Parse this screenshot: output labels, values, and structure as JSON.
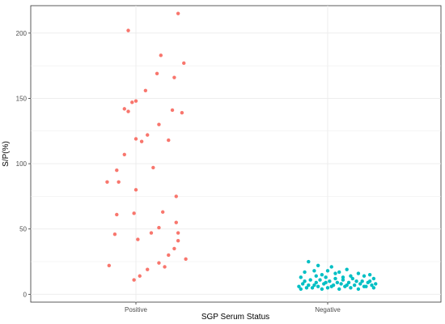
{
  "chart_data": {
    "type": "scatter",
    "xlabel": "SGP Serum Status",
    "ylabel": "S/P(%)",
    "categories": [
      "Positive",
      "Negative"
    ],
    "ylim": [
      -6,
      221
    ],
    "yticks": [
      0,
      50,
      100,
      150,
      200
    ],
    "grid": true,
    "legend": "none",
    "jitter": true,
    "colors": {
      "Positive": "#f8766d",
      "Negative": "#00bfc4"
    },
    "series": [
      {
        "category": "Positive",
        "points": [
          {
            "x": 1.22,
            "y": 215
          },
          {
            "x": 0.96,
            "y": 202
          },
          {
            "x": 1.13,
            "y": 183
          },
          {
            "x": 1.25,
            "y": 177
          },
          {
            "x": 1.11,
            "y": 169
          },
          {
            "x": 1.2,
            "y": 166
          },
          {
            "x": 1.05,
            "y": 156
          },
          {
            "x": 1.0,
            "y": 148
          },
          {
            "x": 0.98,
            "y": 147
          },
          {
            "x": 0.94,
            "y": 142
          },
          {
            "x": 0.96,
            "y": 140
          },
          {
            "x": 1.19,
            "y": 141
          },
          {
            "x": 1.24,
            "y": 139
          },
          {
            "x": 1.12,
            "y": 130
          },
          {
            "x": 1.06,
            "y": 122
          },
          {
            "x": 1.0,
            "y": 119
          },
          {
            "x": 1.03,
            "y": 117
          },
          {
            "x": 1.17,
            "y": 118
          },
          {
            "x": 0.94,
            "y": 107
          },
          {
            "x": 1.09,
            "y": 97
          },
          {
            "x": 0.9,
            "y": 95
          },
          {
            "x": 0.85,
            "y": 86
          },
          {
            "x": 0.91,
            "y": 86
          },
          {
            "x": 1.0,
            "y": 80
          },
          {
            "x": 1.21,
            "y": 75
          },
          {
            "x": 1.14,
            "y": 63
          },
          {
            "x": 0.9,
            "y": 61
          },
          {
            "x": 0.99,
            "y": 62
          },
          {
            "x": 1.21,
            "y": 55
          },
          {
            "x": 1.12,
            "y": 51
          },
          {
            "x": 1.22,
            "y": 47
          },
          {
            "x": 0.89,
            "y": 46
          },
          {
            "x": 1.08,
            "y": 47
          },
          {
            "x": 1.01,
            "y": 42
          },
          {
            "x": 1.22,
            "y": 41
          },
          {
            "x": 1.2,
            "y": 35
          },
          {
            "x": 1.17,
            "y": 30
          },
          {
            "x": 1.26,
            "y": 27
          },
          {
            "x": 1.12,
            "y": 24
          },
          {
            "x": 1.15,
            "y": 21
          },
          {
            "x": 0.86,
            "y": 22
          },
          {
            "x": 1.06,
            "y": 19
          },
          {
            "x": 1.02,
            "y": 14
          },
          {
            "x": 0.99,
            "y": 11
          }
        ]
      },
      {
        "category": "Negative",
        "points": [
          {
            "x": 1.9,
            "y": 25
          },
          {
            "x": 1.95,
            "y": 22
          },
          {
            "x": 2.02,
            "y": 21
          },
          {
            "x": 2.1,
            "y": 19
          },
          {
            "x": 1.93,
            "y": 18
          },
          {
            "x": 2.0,
            "y": 18
          },
          {
            "x": 1.88,
            "y": 17
          },
          {
            "x": 2.06,
            "y": 17
          },
          {
            "x": 2.16,
            "y": 16
          },
          {
            "x": 2.22,
            "y": 15
          },
          {
            "x": 1.97,
            "y": 15
          },
          {
            "x": 2.12,
            "y": 14
          },
          {
            "x": 2.19,
            "y": 14
          },
          {
            "x": 1.86,
            "y": 13
          },
          {
            "x": 1.99,
            "y": 13
          },
          {
            "x": 2.04,
            "y": 12
          },
          {
            "x": 2.13,
            "y": 12
          },
          {
            "x": 2.24,
            "y": 12
          },
          {
            "x": 1.91,
            "y": 11
          },
          {
            "x": 1.96,
            "y": 11
          },
          {
            "x": 2.08,
            "y": 11
          },
          {
            "x": 2.18,
            "y": 10
          },
          {
            "x": 1.88,
            "y": 10
          },
          {
            "x": 2.01,
            "y": 10
          },
          {
            "x": 2.15,
            "y": 10
          },
          {
            "x": 2.21,
            "y": 9
          },
          {
            "x": 1.94,
            "y": 9
          },
          {
            "x": 2.05,
            "y": 9
          },
          {
            "x": 2.11,
            "y": 9
          },
          {
            "x": 2.25,
            "y": 8
          },
          {
            "x": 1.87,
            "y": 8
          },
          {
            "x": 1.98,
            "y": 8
          },
          {
            "x": 2.07,
            "y": 8
          },
          {
            "x": 2.17,
            "y": 8
          },
          {
            "x": 2.23,
            "y": 7
          },
          {
            "x": 1.9,
            "y": 7
          },
          {
            "x": 2.03,
            "y": 7
          },
          {
            "x": 2.14,
            "y": 7
          },
          {
            "x": 1.85,
            "y": 6
          },
          {
            "x": 1.95,
            "y": 6
          },
          {
            "x": 2.09,
            "y": 6
          },
          {
            "x": 2.2,
            "y": 6
          },
          {
            "x": 1.92,
            "y": 5
          },
          {
            "x": 2.0,
            "y": 5
          },
          {
            "x": 2.12,
            "y": 5
          },
          {
            "x": 2.24,
            "y": 5
          },
          {
            "x": 1.86,
            "y": 4
          },
          {
            "x": 1.97,
            "y": 4
          },
          {
            "x": 2.06,
            "y": 4
          },
          {
            "x": 2.16,
            "y": 4
          },
          {
            "x": 1.89,
            "y": 5
          },
          {
            "x": 2.19,
            "y": 6
          },
          {
            "x": 2.02,
            "y": 6
          },
          {
            "x": 1.93,
            "y": 7
          },
          {
            "x": 2.1,
            "y": 7
          },
          {
            "x": 2.22,
            "y": 10
          },
          {
            "x": 2.08,
            "y": 13
          },
          {
            "x": 1.94,
            "y": 14
          },
          {
            "x": 2.04,
            "y": 16
          },
          {
            "x": 1.99,
            "y": 9
          }
        ]
      }
    ]
  }
}
